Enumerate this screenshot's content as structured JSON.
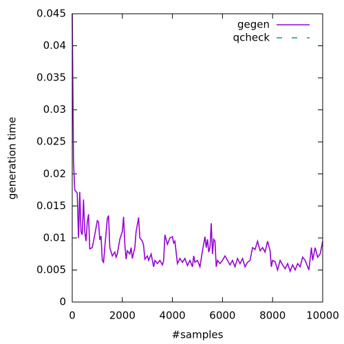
{
  "chart_data": {
    "type": "line",
    "xlabel": "#samples",
    "ylabel": "generation time",
    "xlim": [
      0,
      10000
    ],
    "xticks": [
      0,
      2000,
      4000,
      6000,
      8000,
      10000
    ],
    "ylim": [
      0,
      0.045
    ],
    "yticks": [
      0,
      0.005,
      0.01,
      0.015,
      0.02,
      0.025,
      0.03,
      0.035,
      0.04,
      0.045
    ],
    "legend": "top-right",
    "series": [
      {
        "name": "gegen",
        "color": "#9400d3",
        "dash": "solid",
        "x": [
          0,
          50,
          100,
          200,
          250,
          300,
          350,
          400,
          450,
          500,
          550,
          600,
          650,
          700,
          800,
          900,
          1000,
          1050,
          1100,
          1150,
          1200,
          1250,
          1300,
          1400,
          1450,
          1500,
          1600,
          1700,
          1750,
          1800,
          1900,
          2000,
          2050,
          2100,
          2150,
          2200,
          2300,
          2350,
          2400,
          2500,
          2550,
          2650,
          2700,
          2800,
          2850,
          2900,
          3000,
          3050,
          3150,
          3250,
          3300,
          3400,
          3500,
          3600,
          3650,
          3700,
          3800,
          3900,
          4000,
          4050,
          4100,
          4200,
          4300,
          4400,
          4500,
          4600,
          4700,
          4800,
          4850,
          4900,
          5000,
          5100,
          5200,
          5300,
          5350,
          5400,
          5450,
          5500,
          5550,
          5600,
          5650,
          5700,
          5750,
          5800,
          5900,
          6000,
          6100,
          6200,
          6300,
          6400,
          6500,
          6600,
          6700,
          6800,
          6900,
          7000,
          7100,
          7200,
          7300,
          7400,
          7500,
          7600,
          7700,
          7800,
          7900,
          7950,
          8000,
          8100,
          8200,
          8300,
          8400,
          8500,
          8600,
          8700,
          8800,
          8900,
          9000,
          9100,
          9200,
          9300,
          9400,
          9450,
          9550,
          9600,
          9700,
          9800,
          9900,
          10000
        ],
        "values": [
          0.045,
          0.022,
          0.0175,
          0.017,
          0.01,
          0.0172,
          0.011,
          0.0105,
          0.016,
          0.011,
          0.0095,
          0.0125,
          0.0137,
          0.0083,
          0.0085,
          0.0105,
          0.0127,
          0.0125,
          0.0097,
          0.0103,
          0.0065,
          0.0062,
          0.0085,
          0.013,
          0.0135,
          0.0085,
          0.0072,
          0.0078,
          0.007,
          0.0075,
          0.0098,
          0.011,
          0.0133,
          0.009,
          0.0067,
          0.008,
          0.0075,
          0.0085,
          0.0068,
          0.0085,
          0.011,
          0.0132,
          0.01,
          0.0095,
          0.0088,
          0.0067,
          0.0072,
          0.0065,
          0.0075,
          0.0055,
          0.0065,
          0.006,
          0.0065,
          0.0058,
          0.0065,
          0.0105,
          0.009,
          0.01,
          0.0102,
          0.0092,
          0.0095,
          0.006,
          0.0068,
          0.0062,
          0.0068,
          0.0057,
          0.0065,
          0.0055,
          0.0072,
          0.0062,
          0.0065,
          0.0055,
          0.008,
          0.0102,
          0.0085,
          0.0098,
          0.0078,
          0.0085,
          0.0123,
          0.0075,
          0.0098,
          0.0095,
          0.0055,
          0.0065,
          0.006,
          0.0065,
          0.0072,
          0.0065,
          0.0058,
          0.0065,
          0.0055,
          0.0068,
          0.006,
          0.0068,
          0.0055,
          0.0062,
          0.0065,
          0.0085,
          0.0082,
          0.0095,
          0.008,
          0.0085,
          0.0078,
          0.0095,
          0.008,
          0.0055,
          0.0065,
          0.0063,
          0.005,
          0.0065,
          0.0058,
          0.0052,
          0.006,
          0.0048,
          0.0058,
          0.005,
          0.006,
          0.0055,
          0.007,
          0.0065,
          0.0055,
          0.005,
          0.0085,
          0.0065,
          0.0085,
          0.007,
          0.0075,
          0.0095
        ]
      },
      {
        "name": "qcheck",
        "color": "#009e73",
        "dash": "dashed",
        "x": [],
        "values": []
      }
    ]
  }
}
